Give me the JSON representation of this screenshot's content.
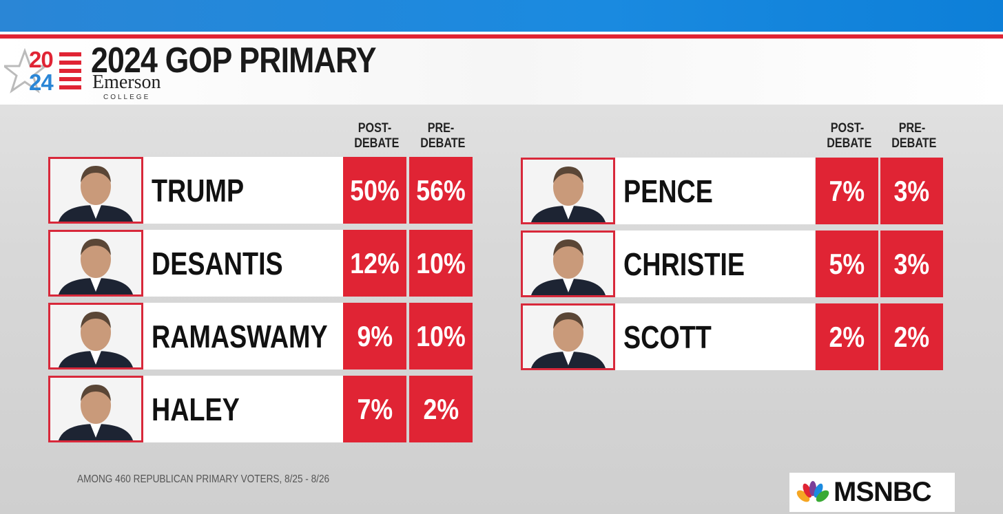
{
  "header": {
    "logo_top": "20",
    "logo_bottom": "24",
    "logo_name": "Emerson",
    "logo_sub": "COLLEGE",
    "title": "2024 GOP PRIMARY"
  },
  "columns": [
    "POST-DEBATE",
    "PRE-DEBATE"
  ],
  "panels": [
    {
      "rows": [
        {
          "name": "TRUMP",
          "post": "50%",
          "pre": "56%"
        },
        {
          "name": "DESANTIS",
          "post": "12%",
          "pre": "10%"
        },
        {
          "name": "RAMASWAMY",
          "post": "9%",
          "pre": "10%"
        },
        {
          "name": "HALEY",
          "post": "7%",
          "pre": "2%"
        }
      ]
    },
    {
      "rows": [
        {
          "name": "PENCE",
          "post": "7%",
          "pre": "3%"
        },
        {
          "name": "CHRISTIE",
          "post": "5%",
          "pre": "3%"
        },
        {
          "name": "SCOTT",
          "post": "2%",
          "pre": "2%"
        }
      ]
    }
  ],
  "footnote": "AMONG 460 REPUBLICAN PRIMARY VOTERS, 8/25 - 8/26",
  "network": "MSNBC"
}
